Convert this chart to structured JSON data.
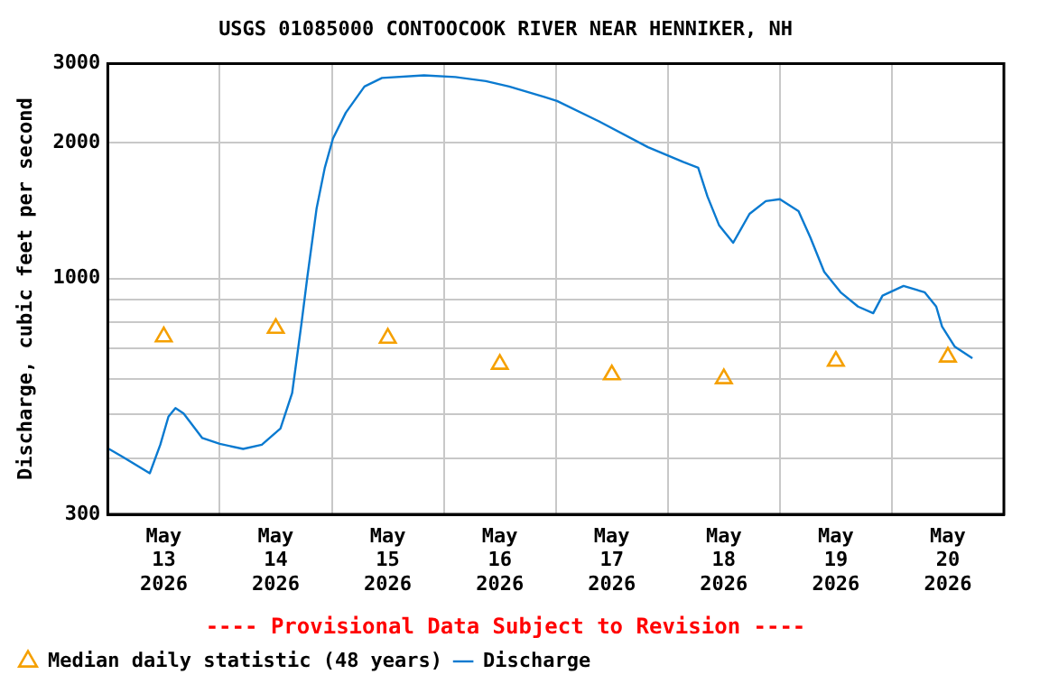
{
  "chart_data": {
    "type": "line",
    "title": "USGS 01085000 CONTOOCOOK RIVER NEAR HENNIKER, NH",
    "ylabel": "Discharge, cubic feet per second",
    "annotations": [
      "---- Provisional Data Subject to Revision ----"
    ],
    "xlim": [
      "2026-05-13T00:00",
      "2026-05-21T00:00"
    ],
    "xticks": [
      {
        "value": "2026-05-13T12:00",
        "label": "May 13 2026"
      },
      {
        "value": "2026-05-14T00:00",
        "label": null
      },
      {
        "value": "2026-05-14T12:00",
        "label": "May 14 2026"
      },
      {
        "value": "2026-05-15T00:00",
        "label": null
      },
      {
        "value": "2026-05-15T12:00",
        "label": "May 15 2026"
      },
      {
        "value": "2026-05-16T00:00",
        "label": null
      },
      {
        "value": "2026-05-16T12:00",
        "label": "May 16 2026"
      },
      {
        "value": "2026-05-17T00:00",
        "label": null
      },
      {
        "value": "2026-05-17T12:00",
        "label": "May 17 2026"
      },
      {
        "value": "2026-05-18T00:00",
        "label": null
      },
      {
        "value": "2026-05-18T12:00",
        "label": "May 18 2026"
      },
      {
        "value": "2026-05-19T00:00",
        "label": null
      },
      {
        "value": "2026-05-19T12:00",
        "label": "May 19 2026"
      },
      {
        "value": "2026-05-20T00:00",
        "label": null
      },
      {
        "value": "2026-05-20T12:00",
        "label": "May 20 2026"
      }
    ],
    "ylim": [
      300,
      3000
    ],
    "yticks": [
      300,
      {
        "value": 400,
        "label": null
      },
      {
        "value": 500,
        "label": null
      },
      {
        "value": 600,
        "label": null
      },
      {
        "value": 700,
        "label": null
      },
      {
        "value": 800,
        "label": null
      },
      {
        "value": 900,
        "label": null
      },
      1000,
      2000,
      3000
    ],
    "log": "y",
    "grid": true,
    "legend": "bottom",
    "series": [
      {
        "name": "Median daily statistic (48 years)",
        "type": "scatter",
        "marker": "triangle",
        "color": "#f5a000",
        "x": [
          "2026-05-13T12:00",
          "2026-05-14T12:00",
          "2026-05-15T12:00",
          "2026-05-16T12:00",
          "2026-05-17T12:00",
          "2026-05-18T12:00",
          "2026-05-19T12:00",
          "2026-05-20T12:00"
        ],
        "values": [
          743,
          776,
          738,
          646,
          612,
          600,
          656,
          670
        ]
      },
      {
        "name": "Discharge",
        "type": "line",
        "marker": "none",
        "color": "#0a7ad0",
        "x": [
          "2026-05-13T00:15",
          "2026-05-13T03:15",
          "2026-05-13T09:00",
          "2026-05-13T11:15",
          "2026-05-13T13:00",
          "2026-05-13T14:30",
          "2026-05-13T16:15",
          "2026-05-13T20:15",
          "2026-05-14T00:00",
          "2026-05-14T05:00",
          "2026-05-14T09:00",
          "2026-05-14T13:00",
          "2026-05-14T15:30",
          "2026-05-14T17:30",
          "2026-05-14T18:45",
          "2026-05-14T20:45",
          "2026-05-14T22:30",
          "2026-05-15T00:15",
          "2026-05-15T03:00",
          "2026-05-15T07:00",
          "2026-05-15T10:45",
          "2026-05-15T19:45",
          "2026-05-16T02:30",
          "2026-05-16T09:00",
          "2026-05-16T14:00",
          "2026-05-16T21:30",
          "2026-05-17T00:15",
          "2026-05-17T09:15",
          "2026-05-17T19:45",
          "2026-05-18T03:15",
          "2026-05-18T06:30",
          "2026-05-18T08:30",
          "2026-05-18T11:00",
          "2026-05-18T14:00",
          "2026-05-18T17:30",
          "2026-05-18T21:00",
          "2026-05-19T00:00",
          "2026-05-19T04:00",
          "2026-05-19T06:30",
          "2026-05-19T09:30",
          "2026-05-19T13:00",
          "2026-05-19T16:45",
          "2026-05-19T20:00",
          "2026-05-19T22:00",
          "2026-05-20T02:30",
          "2026-05-20T07:00",
          "2026-05-20T09:30",
          "2026-05-20T10:45",
          "2026-05-20T13:30",
          "2026-05-20T17:15"
        ],
        "values": [
          419,
          402,
          370,
          428,
          494,
          516,
          502,
          443,
          430,
          419,
          428,
          465,
          557,
          795,
          1006,
          1433,
          1762,
          2045,
          2334,
          2668,
          2787,
          2825,
          2800,
          2742,
          2668,
          2530,
          2478,
          2233,
          1957,
          1816,
          1762,
          1520,
          1312,
          1201,
          1392,
          1486,
          1500,
          1412,
          1236,
          1035,
          933,
          867,
          838,
          917,
          963,
          933,
          867,
          783,
          706,
          666
        ]
      }
    ]
  }
}
